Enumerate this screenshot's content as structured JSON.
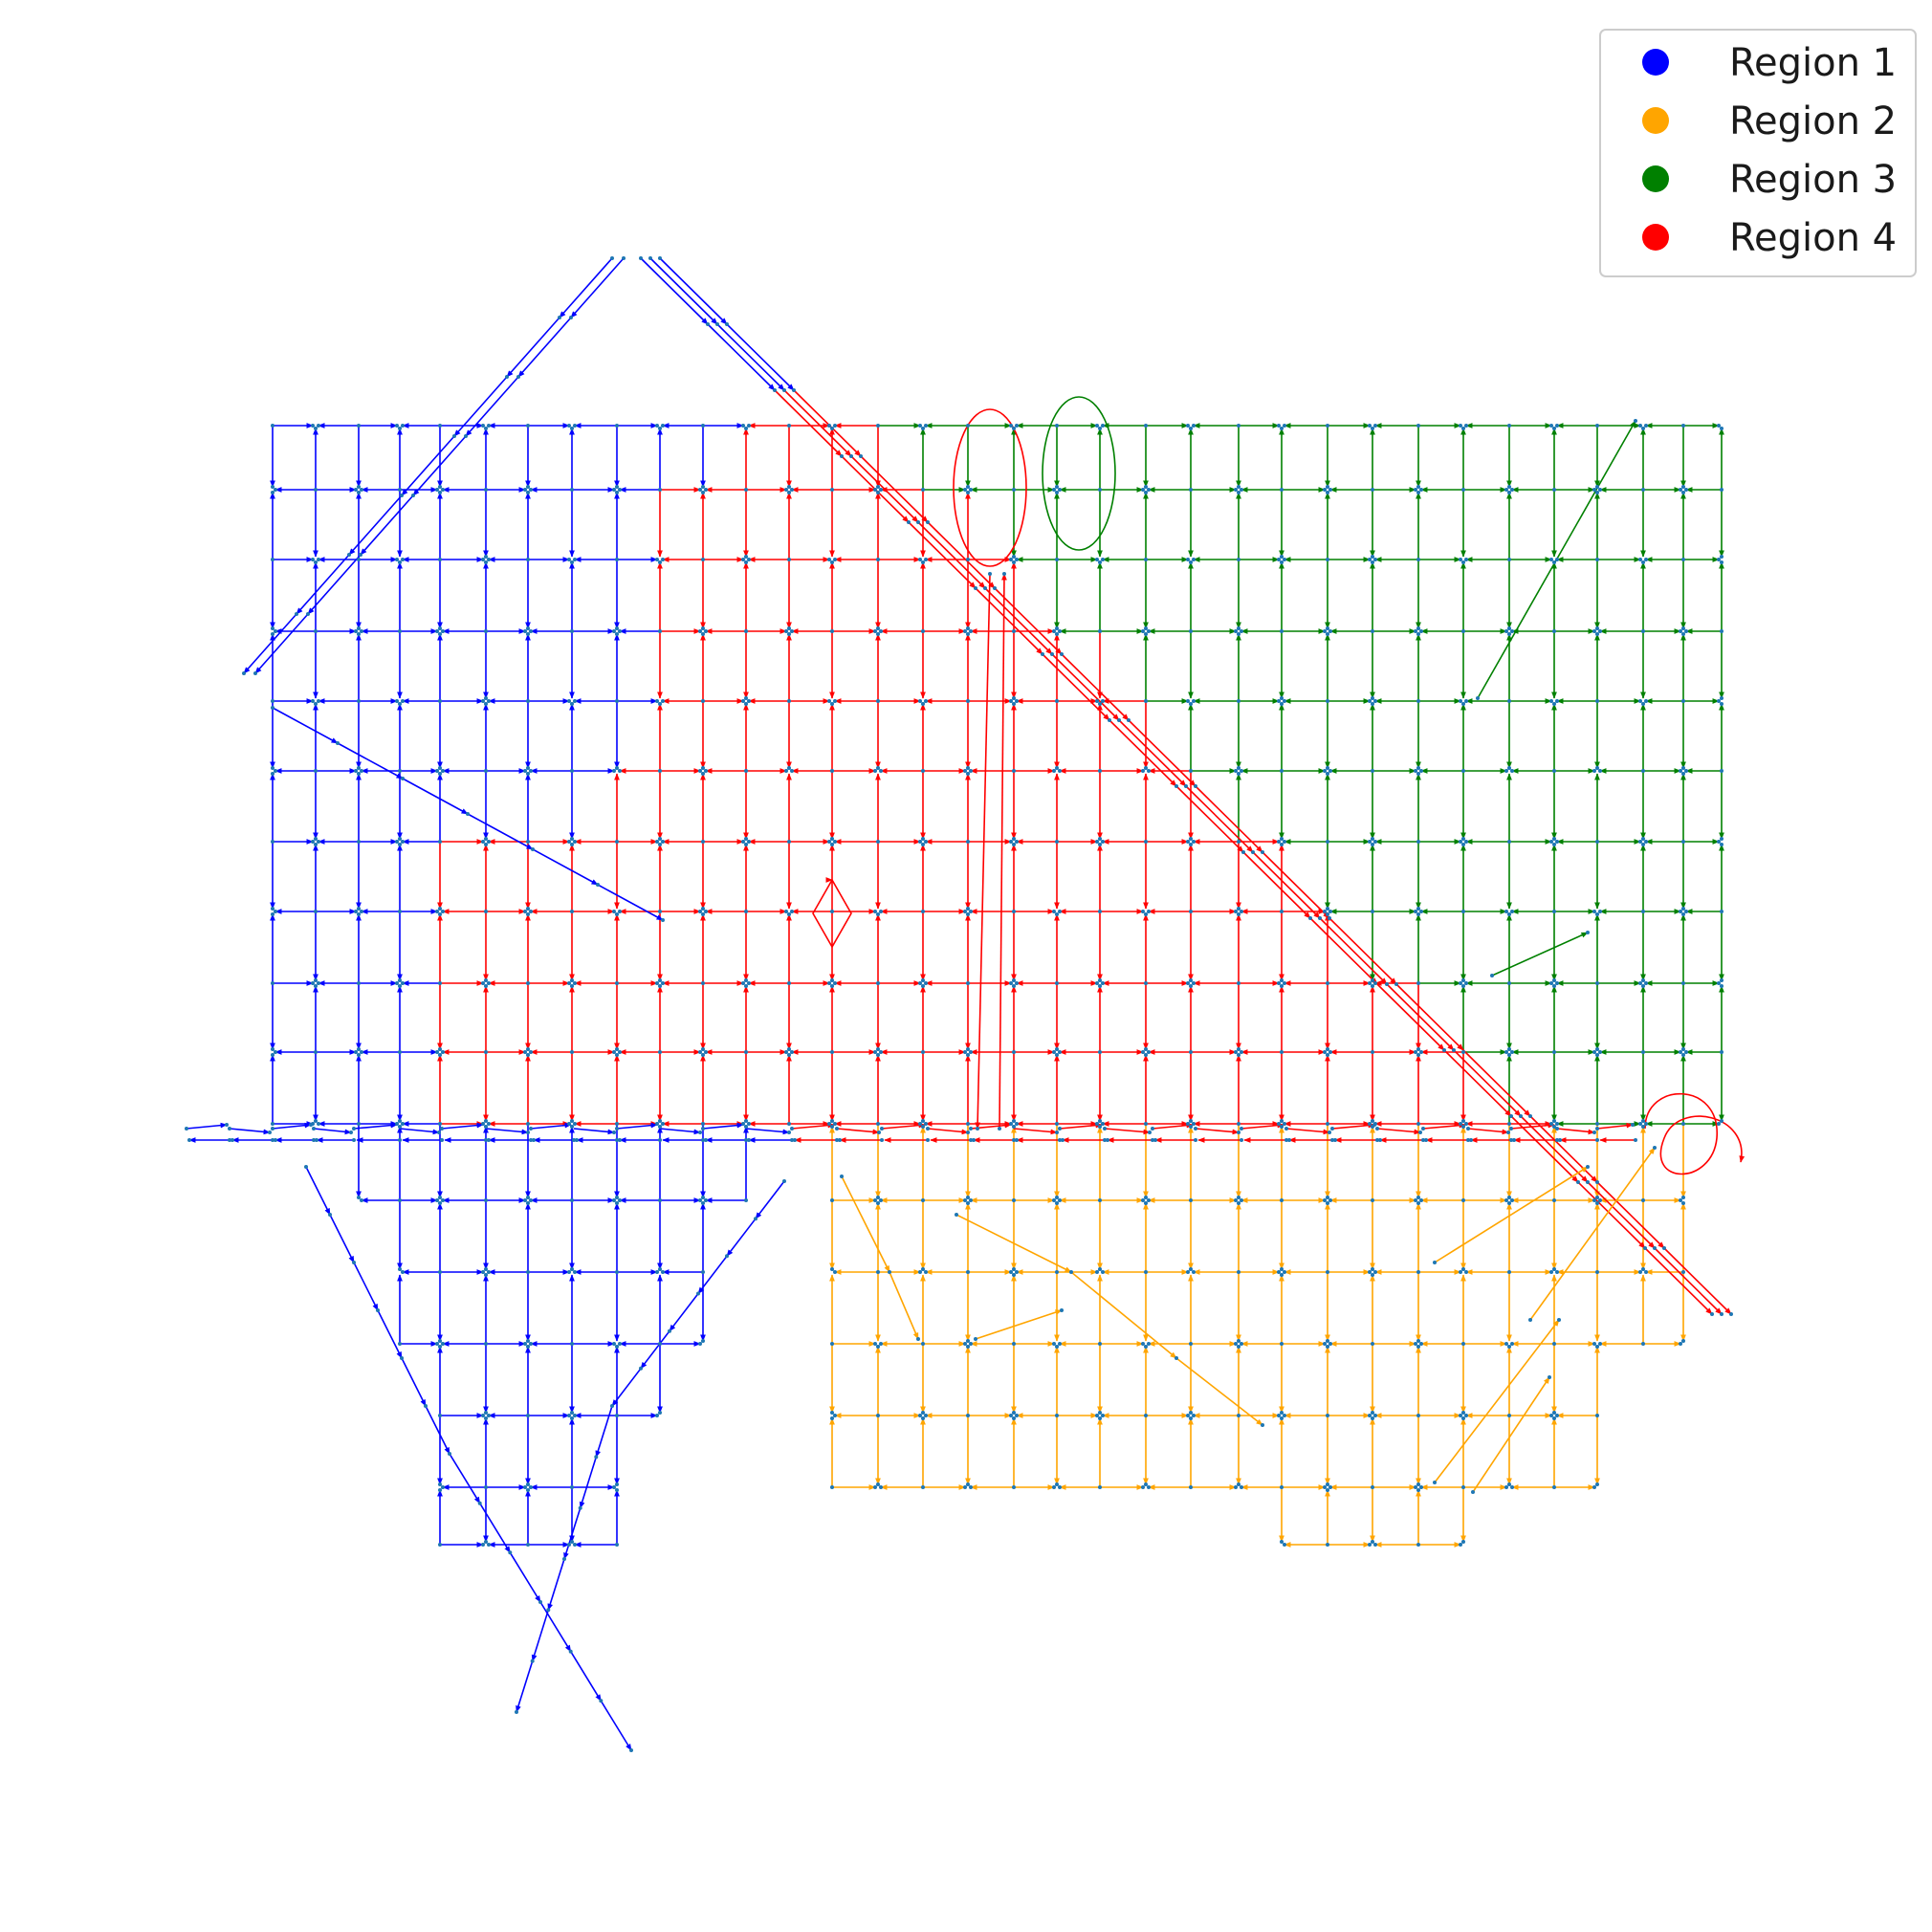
{
  "legend": {
    "placement": "top-right",
    "entries": [
      {
        "label": "Region 1",
        "color": "#0000ff"
      },
      {
        "label": "Region 2",
        "color": "#ffa500"
      },
      {
        "label": "Region 3",
        "color": "#008000"
      },
      {
        "label": "Region 4",
        "color": "#ff0000"
      }
    ]
  },
  "network": {
    "type": "directed-road-network",
    "node_color": "#1f77b4",
    "regions": [
      {
        "name": "Region 1",
        "color": "#0000ff"
      },
      {
        "name": "Region 2",
        "color": "#ffa500"
      },
      {
        "name": "Region 3",
        "color": "#008000"
      },
      {
        "name": "Region 4",
        "color": "#ff0000"
      }
    ]
  }
}
